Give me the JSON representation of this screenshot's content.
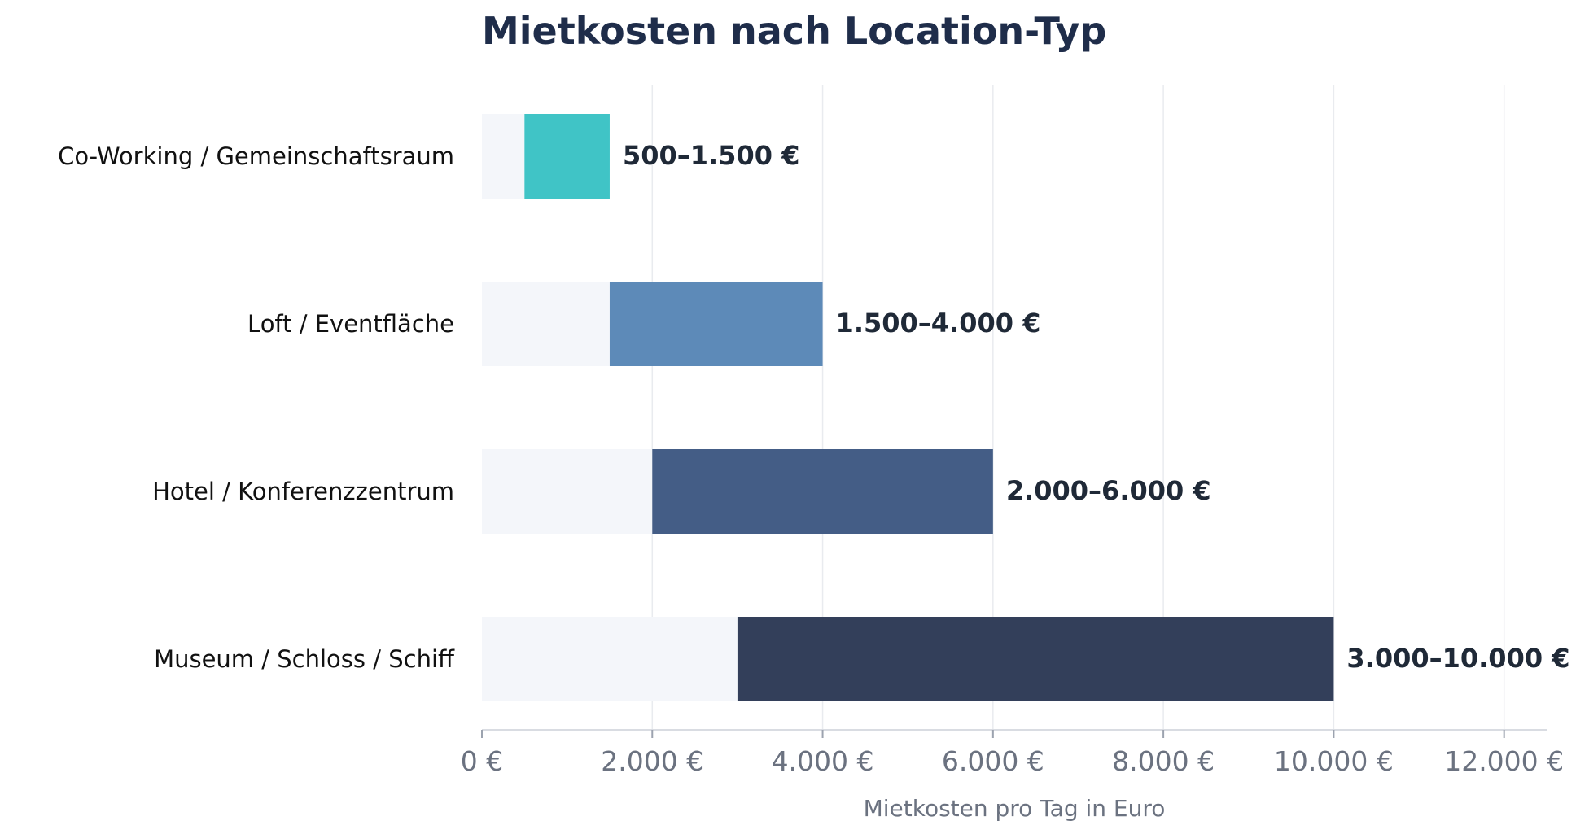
{
  "chart_data": {
    "type": "bar",
    "orientation": "horizontal",
    "title": "Mietkosten nach Location-Typ",
    "xlabel": "Mietkosten pro Tag in Euro",
    "ylabel": "",
    "xlim": [
      0,
      12500
    ],
    "grid": true,
    "legend": "none",
    "categories": [
      "Co-Working / Gemeinschaftsraum",
      "Loft / Eventfläche",
      "Hotel / Konferenzzentrum",
      "Museum / Schloss / Schiff"
    ],
    "ranges": [
      {
        "min": 500,
        "max": 1500
      },
      {
        "min": 1500,
        "max": 4000
      },
      {
        "min": 2000,
        "max": 6000
      },
      {
        "min": 3000,
        "max": 10000
      }
    ],
    "data_labels": [
      "500–1.500 €",
      "1.500–4.000 €",
      "2.000–6.000 €",
      "3.000–10.000 €"
    ],
    "colors": [
      "#40c4c6",
      "#5d8ab8",
      "#445d86",
      "#333f5a"
    ],
    "background_bar_color": "#f4f6fa",
    "grid_color": "#e9ebef",
    "xticks": [
      0,
      2000,
      4000,
      6000,
      8000,
      10000,
      12000
    ],
    "xtick_labels": [
      "0 €",
      "2.000 €",
      "4.000 €",
      "6.000 €",
      "8.000 €",
      "10.000 €",
      "12.000 €"
    ]
  }
}
